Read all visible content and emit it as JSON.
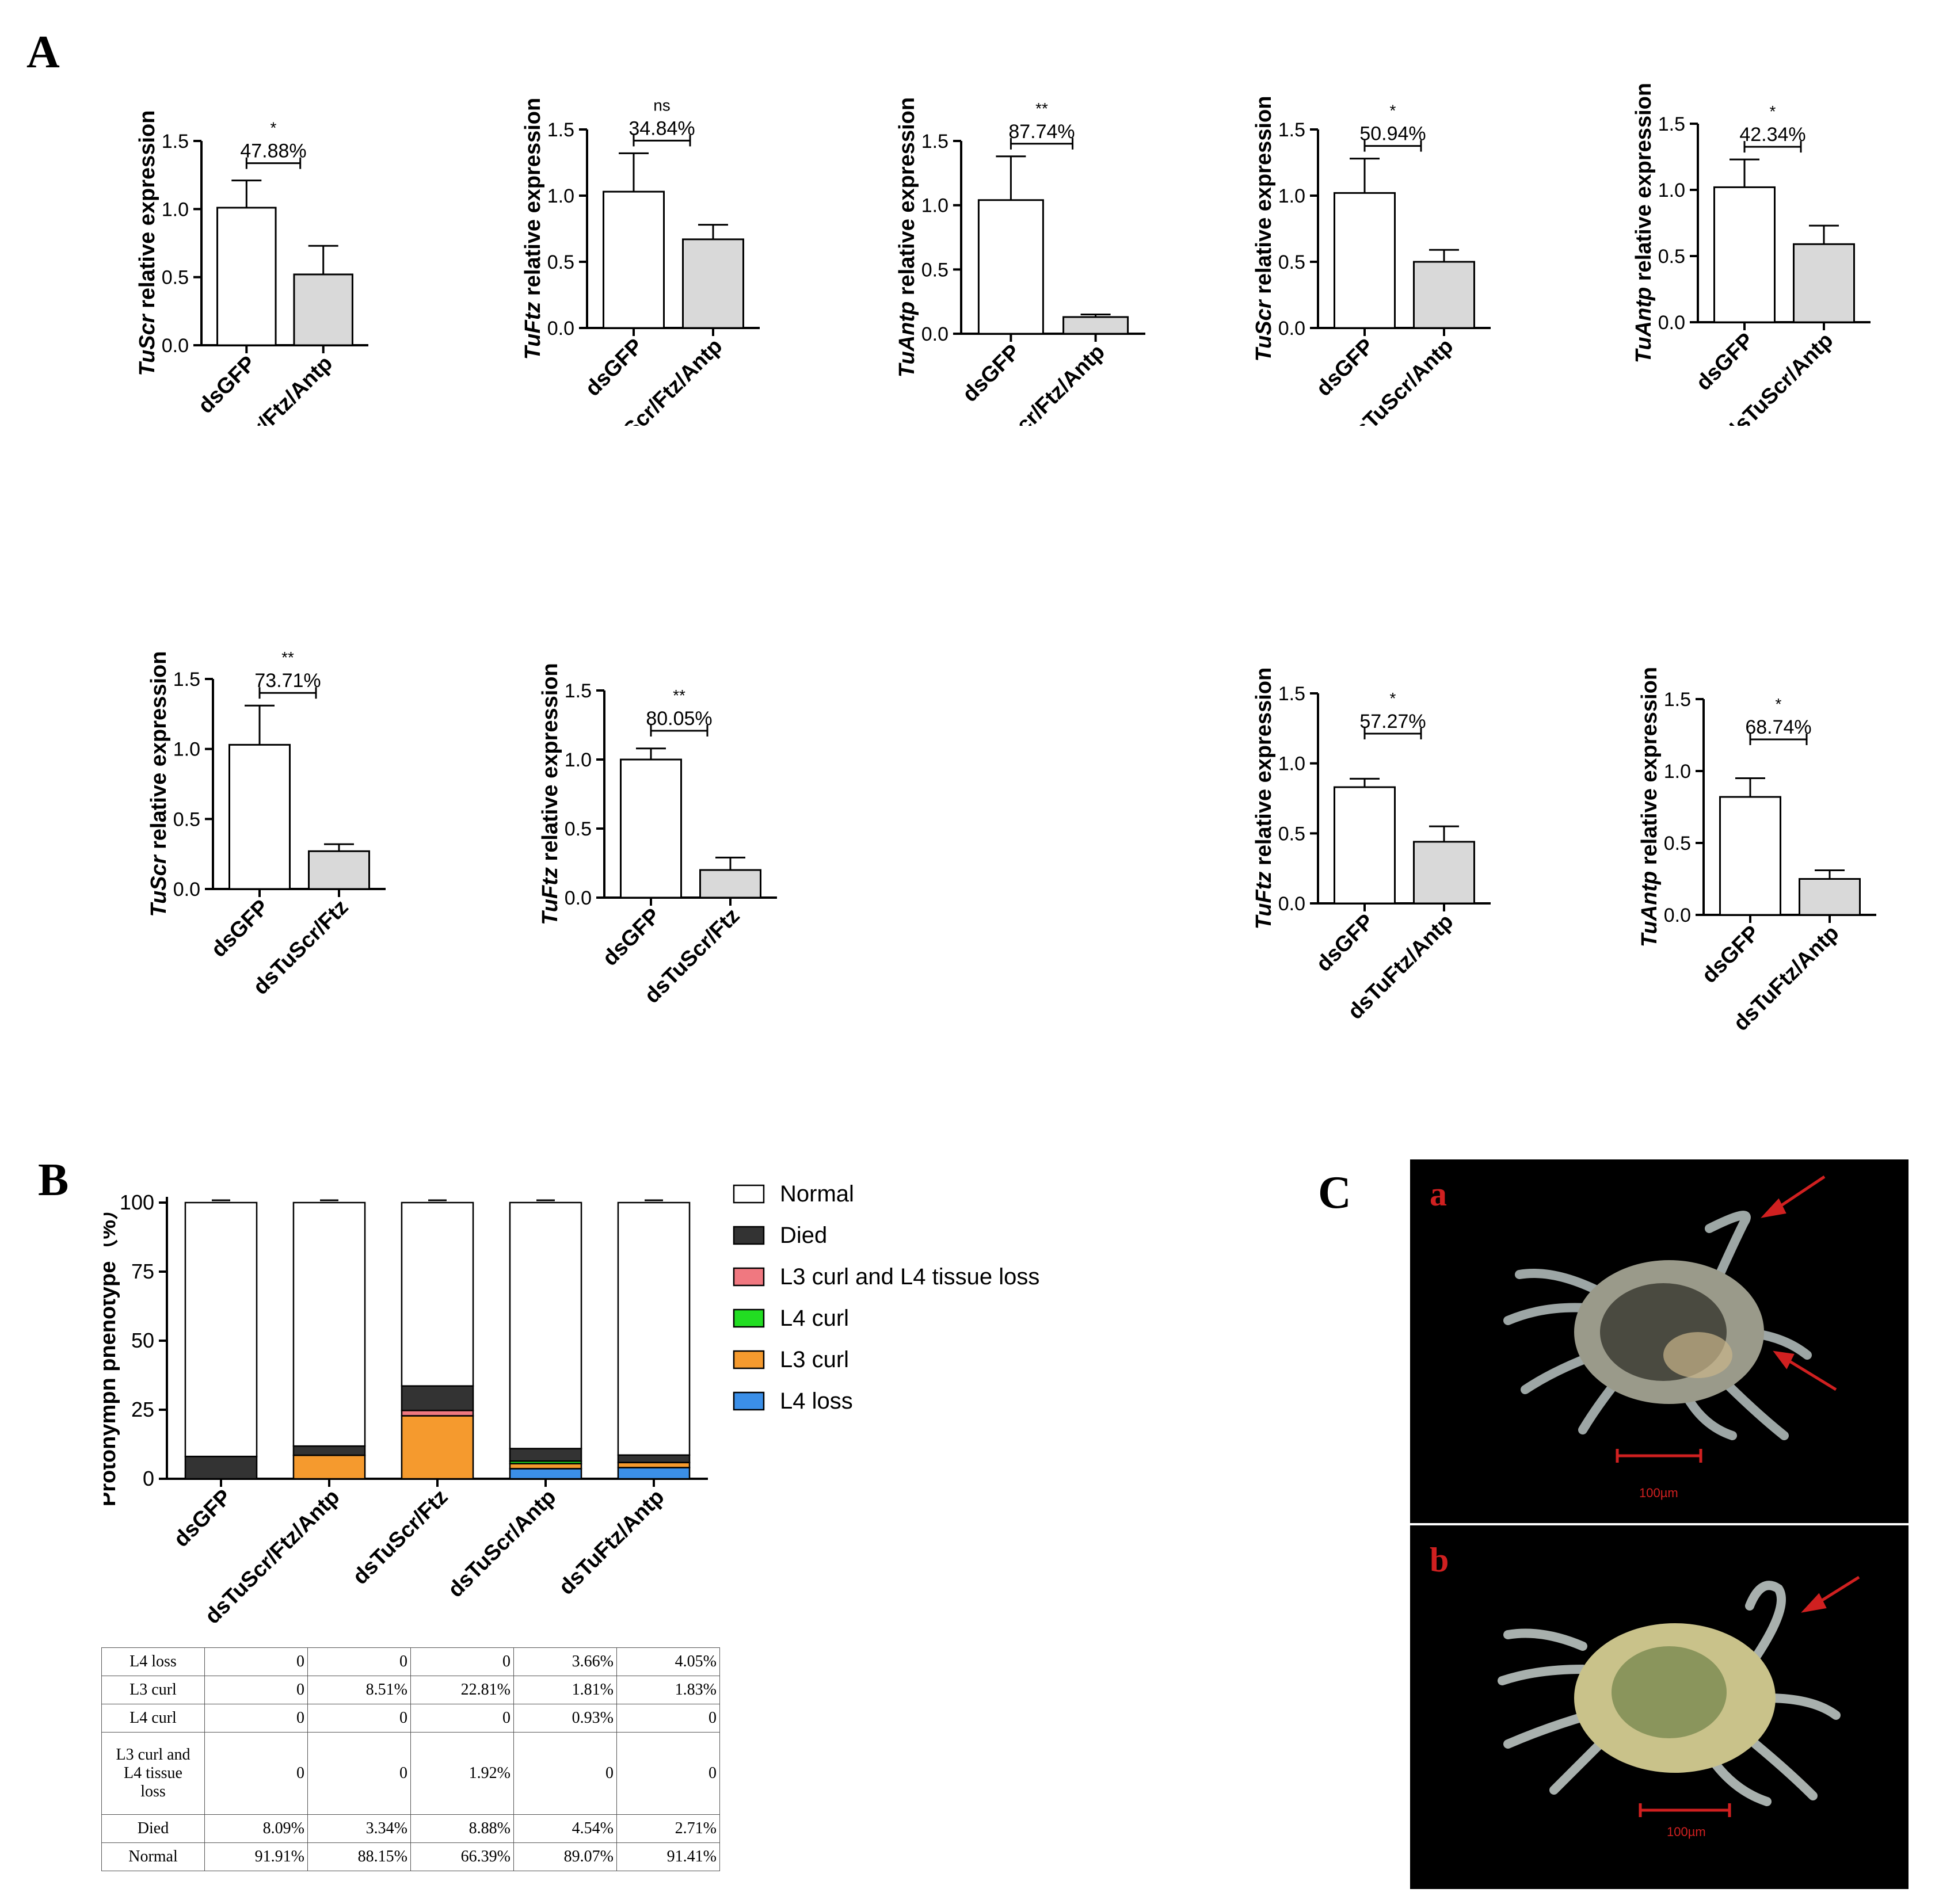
{
  "panel_labels": {
    "a": "A",
    "b": "B",
    "c": "C"
  },
  "chart_data": [
    {
      "id": "a1",
      "type": "bar",
      "ylabel_gene": "TuScr",
      "ylabel_rest": " relative expression",
      "yticks": [
        "0.0",
        "0.5",
        "1.0",
        "1.5"
      ],
      "ylim": [
        0,
        1.5
      ],
      "categories": [
        "dsGFP",
        "dsTuScr/Ftz/Antp"
      ],
      "values": [
        1.01,
        0.52
      ],
      "errors": [
        0.2,
        0.21
      ],
      "significance": "*",
      "percent": "47.88%"
    },
    {
      "id": "a2",
      "type": "bar",
      "ylabel_gene": "TuFtz",
      "ylabel_rest": " relative expression",
      "yticks": [
        "0.0",
        "0.5",
        "1.0",
        "1.5"
      ],
      "ylim": [
        0,
        1.5
      ],
      "categories": [
        "dsGFP",
        "dsTuScr/Ftz/Antp"
      ],
      "values": [
        1.03,
        0.67
      ],
      "errors": [
        0.29,
        0.11
      ],
      "significance": "ns",
      "percent": "34.84%"
    },
    {
      "id": "a3",
      "type": "bar",
      "ylabel_gene": "TuAntp",
      "ylabel_rest": " relative expression",
      "yticks": [
        "0.0",
        "0.5",
        "1.0",
        "1.5"
      ],
      "ylim": [
        0,
        1.5
      ],
      "categories": [
        "dsGFP",
        "dsTuScr/Ftz/Antp"
      ],
      "values": [
        1.04,
        0.13
      ],
      "errors": [
        0.34,
        0.02
      ],
      "significance": "**",
      "percent": "87.74%"
    },
    {
      "id": "a4",
      "type": "bar",
      "ylabel_gene": "TuScr",
      "ylabel_rest": " relative expression",
      "yticks": [
        "0.0",
        "0.5",
        "1.0",
        "1.5"
      ],
      "ylim": [
        0,
        1.5
      ],
      "categories": [
        "dsGFP",
        "dsTuScr/Antp"
      ],
      "values": [
        1.02,
        0.5
      ],
      "errors": [
        0.26,
        0.09
      ],
      "significance": "*",
      "percent": "50.94%"
    },
    {
      "id": "a5",
      "type": "bar",
      "ylabel_gene": "TuAntp",
      "ylabel_rest": " relative expression",
      "yticks": [
        "0.0",
        "0.5",
        "1.0",
        "1.5"
      ],
      "ylim": [
        0,
        1.5
      ],
      "categories": [
        "dsGFP",
        "dsTuScr/Antp"
      ],
      "values": [
        1.02,
        0.59
      ],
      "errors": [
        0.21,
        0.14
      ],
      "significance": "*",
      "percent": "42.34%"
    },
    {
      "id": "a6",
      "type": "bar",
      "ylabel_gene": "TuScr",
      "ylabel_rest": " relative expression",
      "yticks": [
        "0.0",
        "0.5",
        "1.0",
        "1.5"
      ],
      "ylim": [
        0,
        1.5
      ],
      "categories": [
        "dsGFP",
        "dsTuScr/Ftz"
      ],
      "values": [
        1.03,
        0.27
      ],
      "errors": [
        0.28,
        0.05
      ],
      "significance": "**",
      "percent": "73.71%"
    },
    {
      "id": "a7",
      "type": "bar",
      "ylabel_gene": "TuFtz",
      "ylabel_rest": " relative expression",
      "yticks": [
        "0.0",
        "0.5",
        "1.0",
        "1.5"
      ],
      "ylim": [
        0,
        1.5
      ],
      "categories": [
        "dsGFP",
        "dsTuScr/Ftz"
      ],
      "values": [
        1.0,
        0.2
      ],
      "errors": [
        0.08,
        0.09
      ],
      "significance": "**",
      "percent": "80.05%"
    },
    {
      "id": "a8",
      "type": "bar",
      "ylabel_gene": "TuFtz",
      "ylabel_rest": " relative expression",
      "yticks": [
        "0.0",
        "0.5",
        "1.0",
        "1.5"
      ],
      "ylim": [
        0,
        1.5
      ],
      "categories": [
        "dsGFP",
        "dsTuFtz/Antp"
      ],
      "values": [
        0.83,
        0.44
      ],
      "errors": [
        0.06,
        0.11
      ],
      "significance": "*",
      "percent": "57.27%"
    },
    {
      "id": "a9",
      "type": "bar",
      "ylabel_gene": "TuAntp",
      "ylabel_rest": " relative expression",
      "yticks": [
        "0.0",
        "0.5",
        "1.0",
        "1.5"
      ],
      "ylim": [
        0,
        1.5
      ],
      "categories": [
        "dsGFP",
        "dsTuFtz/Antp"
      ],
      "values": [
        0.82,
        0.25
      ],
      "errors": [
        0.13,
        0.06
      ],
      "significance": "*",
      "percent": "68.74%"
    },
    {
      "id": "b",
      "type": "bar",
      "stacked": true,
      "ylabel": "Protonymph phenotype（%）",
      "yticks": [
        "0",
        "25",
        "50",
        "75",
        "100"
      ],
      "ylim": [
        0,
        100
      ],
      "categories": [
        "dsGFP",
        "dsTuScr/Ftz/Antp",
        "dsTuScr/Ftz",
        "dsTuScr/Antp",
        "dsTuFtz/Antp"
      ],
      "series": [
        {
          "name": "L4 loss",
          "color": "#3b8fe8",
          "values": [
            0,
            0,
            0,
            3.66,
            4.05
          ]
        },
        {
          "name": "L3 curl",
          "color": "#f59a2e",
          "values": [
            0,
            8.51,
            22.81,
            1.81,
            1.83
          ]
        },
        {
          "name": "L4 curl",
          "color": "#22dd22",
          "values": [
            0,
            0,
            0,
            0.93,
            0
          ]
        },
        {
          "name": "L3 curl and L4 tissue loss",
          "color": "#f07880",
          "values": [
            0,
            0,
            1.92,
            0,
            0
          ]
        },
        {
          "name": "Died",
          "color": "#333333",
          "values": [
            8.09,
            3.34,
            8.88,
            4.54,
            2.71
          ]
        },
        {
          "name": "Normal",
          "color": "#ffffff",
          "values": [
            91.91,
            88.15,
            66.39,
            89.07,
            91.41
          ]
        }
      ],
      "legend_order": [
        "Normal",
        "Died",
        "L3 curl and L4 tissue loss",
        "L4 curl",
        "L3 curl",
        "L4 loss"
      ],
      "legend_placement": "right"
    }
  ],
  "table": {
    "rows": [
      {
        "label": "L4 loss",
        "values": [
          "0",
          "0",
          "0",
          "3.66%",
          "4.05%"
        ]
      },
      {
        "label": "L3 curl",
        "values": [
          "0",
          "8.51%",
          "22.81%",
          "1.81%",
          "1.83%"
        ]
      },
      {
        "label": "L4 curl",
        "values": [
          "0",
          "0",
          "0",
          "0.93%",
          "0"
        ]
      },
      {
        "label_lines": [
          "L3 curl and",
          "L4 tissue",
          "loss"
        ],
        "values": [
          "0",
          "0",
          "1.92%",
          "0",
          "0"
        ]
      },
      {
        "label": "Died",
        "values": [
          "8.09%",
          "3.34%",
          "8.88%",
          "4.54%",
          "2.71%"
        ]
      },
      {
        "label": "Normal",
        "values": [
          "91.91%",
          "88.15%",
          "66.39%",
          "89.07%",
          "91.41%"
        ]
      }
    ]
  },
  "photos": [
    {
      "tag": "a",
      "scale_label": "100µm"
    },
    {
      "tag": "b",
      "scale_label": "100µm"
    }
  ],
  "colors": {
    "control_bar": "#ffffff",
    "treatment_bar": "#d9d9d9",
    "arrow": "#d02020"
  }
}
